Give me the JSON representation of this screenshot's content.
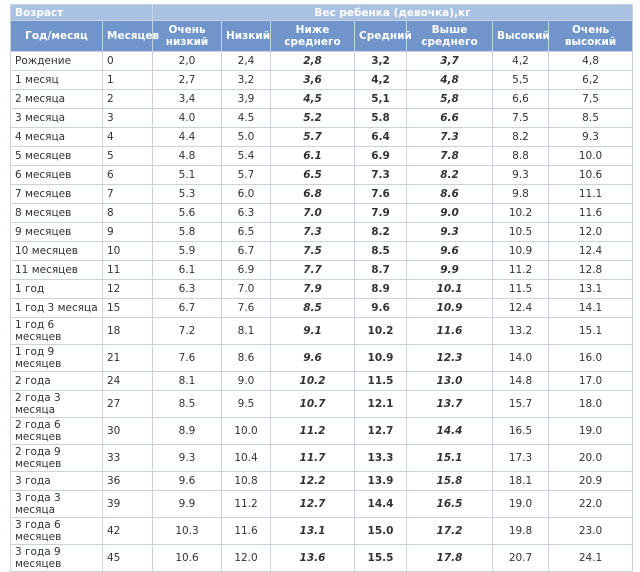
{
  "table": {
    "group_headers": [
      "Возраст",
      "Вес ребенка (девочка),кг"
    ],
    "headers": [
      "Год/месяц",
      "Месяцев",
      "Очень низкий",
      "Низкий",
      "Ниже среднего",
      "Средний",
      "Выше среднего",
      "Высокий",
      "Очень высокий"
    ],
    "rows": [
      [
        "Рождение",
        "0",
        "2,0",
        "2,4",
        "2,8",
        "3,2",
        "3,7",
        "4,2",
        "4,8"
      ],
      [
        "1 месяц",
        "1",
        "2,7",
        "3,2",
        "3,6",
        "4,2",
        "4,8",
        "5,5",
        "6,2"
      ],
      [
        "2 месяца",
        "2",
        "3,4",
        "3,9",
        "4,5",
        "5,1",
        "5,8",
        "6,6",
        "7,5"
      ],
      [
        "3 месяца",
        "3",
        "4.0",
        "4.5",
        "5.2",
        "5.8",
        "6.6",
        "7.5",
        "8.5"
      ],
      [
        "4 месяца",
        "4",
        "4.4",
        "5.0",
        "5.7",
        "6.4",
        "7.3",
        "8.2",
        "9.3"
      ],
      [
        "5 месяцев",
        "5",
        "4.8",
        "5.4",
        "6.1",
        "6.9",
        "7.8",
        "8.8",
        "10.0"
      ],
      [
        "6 месяцев",
        "6",
        "5.1",
        "5.7",
        "6.5",
        "7.3",
        "8.2",
        "9.3",
        "10.6"
      ],
      [
        "7 месяцев",
        "7",
        "5.3",
        "6.0",
        "6.8",
        "7.6",
        "8.6",
        "9.8",
        "11.1"
      ],
      [
        "8 месяцев",
        "8",
        "5.6",
        "6.3",
        "7.0",
        "7.9",
        "9.0",
        "10.2",
        "11.6"
      ],
      [
        "9 месяцев",
        "9",
        "5.8",
        "6.5",
        "7.3",
        "8.2",
        "9.3",
        "10.5",
        "12.0"
      ],
      [
        "10 месяцев",
        "10",
        "5.9",
        "6.7",
        "7.5",
        "8.5",
        "9.6",
        "10.9",
        "12.4"
      ],
      [
        "11 месяцев",
        "11",
        "6.1",
        "6.9",
        "7.7",
        "8.7",
        "9.9",
        "11.2",
        "12.8"
      ],
      [
        "1 год",
        "12",
        "6.3",
        "7.0",
        "7.9",
        "8.9",
        "10.1",
        "11.5",
        "13.1"
      ],
      [
        "1 год 3 месяца",
        "15",
        "6.7",
        "7.6",
        "8.5",
        "9.6",
        "10.9",
        "12.4",
        "14.1"
      ],
      [
        "1 год 6 месяцев",
        "18",
        "7.2",
        "8.1",
        "9.1",
        "10.2",
        "11.6",
        "13.2",
        "15.1"
      ],
      [
        "1 год 9 месяцев",
        "21",
        "7.6",
        "8.6",
        "9.6",
        "10.9",
        "12.3",
        "14.0",
        "16.0"
      ],
      [
        "2 года",
        "24",
        "8.1",
        "9.0",
        "10.2",
        "11.5",
        "13.0",
        "14.8",
        "17.0"
      ],
      [
        "2 года 3 месяца",
        "27",
        "8.5",
        "9.5",
        "10.7",
        "12.1",
        "13.7",
        "15.7",
        "18.0"
      ],
      [
        "2 года 6 месяцев",
        "30",
        "8.9",
        "10.0",
        "11.2",
        "12.7",
        "14.4",
        "16.5",
        "19.0"
      ],
      [
        "2 года 9 месяцев",
        "33",
        "9.3",
        "10.4",
        "11.7",
        "13.3",
        "15.1",
        "17.3",
        "20.0"
      ],
      [
        "3 года",
        "36",
        "9.6",
        "10.8",
        "12.2",
        "13.9",
        "15.8",
        "18.1",
        "20.9"
      ],
      [
        "3 года 3 месяца",
        "39",
        "9.9",
        "11.2",
        "12.7",
        "14.4",
        "16.5",
        "19.0",
        "22.0"
      ],
      [
        "3 года 6 месяцев",
        "42",
        "10.3",
        "11.6",
        "13.1",
        "15.0",
        "17.2",
        "19.8",
        "23.0"
      ],
      [
        "3 года 9 месяцев",
        "45",
        "10.6",
        "12.0",
        "13.6",
        "15.5",
        "17.8",
        "20.7",
        "24.1"
      ]
    ]
  }
}
